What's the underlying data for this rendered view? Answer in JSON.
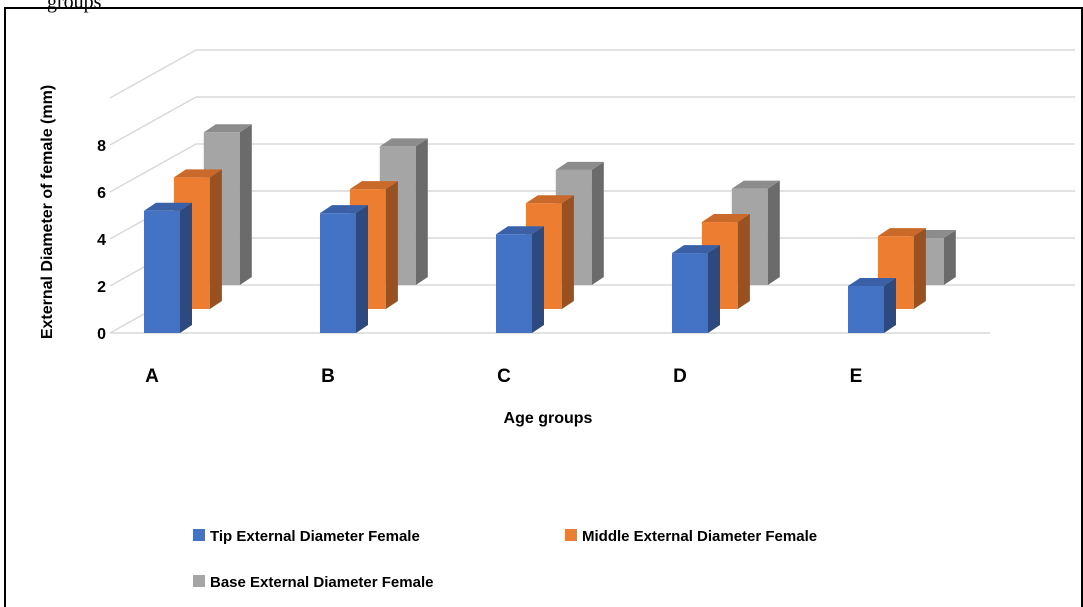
{
  "caption_fragment": "groups",
  "chart_data": {
    "type": "bar",
    "categories": [
      "A",
      "B",
      "C",
      "D",
      "E"
    ],
    "series": [
      {
        "name": "Tip External Diameter Female",
        "color": "#4472C4",
        "values": [
          5.2,
          5.1,
          4.2,
          3.4,
          2.0
        ]
      },
      {
        "name": "Middle External Diameter Female",
        "color": "#ED7D31",
        "values": [
          5.6,
          5.1,
          4.5,
          3.7,
          3.1
        ]
      },
      {
        "name": "Base External Diameter Female",
        "color": "#A5A5A5",
        "values": [
          6.5,
          5.9,
          4.9,
          4.1,
          2.0
        ]
      }
    ],
    "xlabel": "Age groups",
    "ylabel": "External Diameter of female (mm)",
    "yticks": [
      0,
      2,
      4,
      6,
      8
    ],
    "ylim": [
      0,
      10
    ],
    "grid": true,
    "legend_position": "bottom",
    "style": "3d-clustered-column"
  }
}
